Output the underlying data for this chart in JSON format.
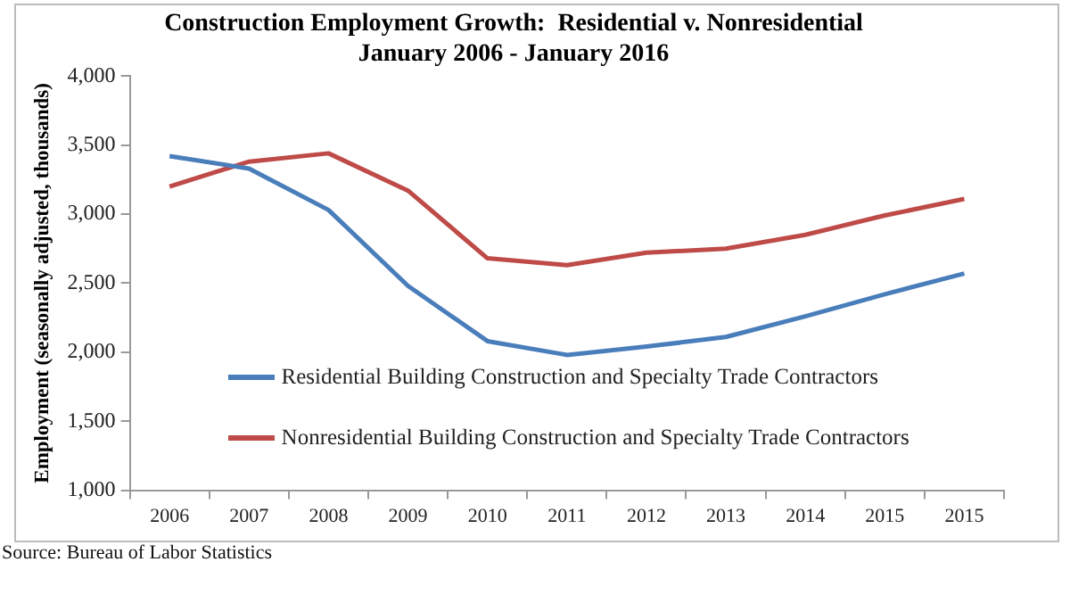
{
  "chart_data": {
    "type": "line",
    "title": "Construction Employment Growth:  Residential v. Nonresidential\nJanuary 2006 - January 2016",
    "ylabel": "Employment (seasonally adjusted, thousands)",
    "annotations": [
      "Source:  Bureau of Labor Statistics"
    ],
    "categories": [
      "2006",
      "2007",
      "2008",
      "2009",
      "2010",
      "2011",
      "2012",
      "2013",
      "2014",
      "2015",
      "2015"
    ],
    "series": [
      {
        "name": "Residential Building Construction and Specialty Trade Contractors",
        "color": "#4a7ebb",
        "values": [
          3420,
          3330,
          3030,
          2480,
          2080,
          1980,
          2040,
          2110,
          2260,
          2420,
          2570
        ]
      },
      {
        "name": "Nonresidential Building Construction and Specialty Trade Contractors",
        "color": "#be4b48",
        "values": [
          3200,
          3380,
          3440,
          3170,
          2680,
          2630,
          2720,
          2750,
          2850,
          2990,
          3110
        ]
      }
    ],
    "ylim": [
      1000,
      4000
    ],
    "yticks": [
      {
        "value": 1000,
        "label": "1,000"
      },
      {
        "value": 1500,
        "label": "1,500"
      },
      {
        "value": 2000,
        "label": "2,000"
      },
      {
        "value": 2500,
        "label": "2,500"
      },
      {
        "value": 3000,
        "label": "3,000"
      },
      {
        "value": 3500,
        "label": "3,500"
      },
      {
        "value": 4000,
        "label": "4,000"
      }
    ],
    "grid": false,
    "legend": "bottom",
    "marker": "none",
    "line_style": "solid"
  }
}
